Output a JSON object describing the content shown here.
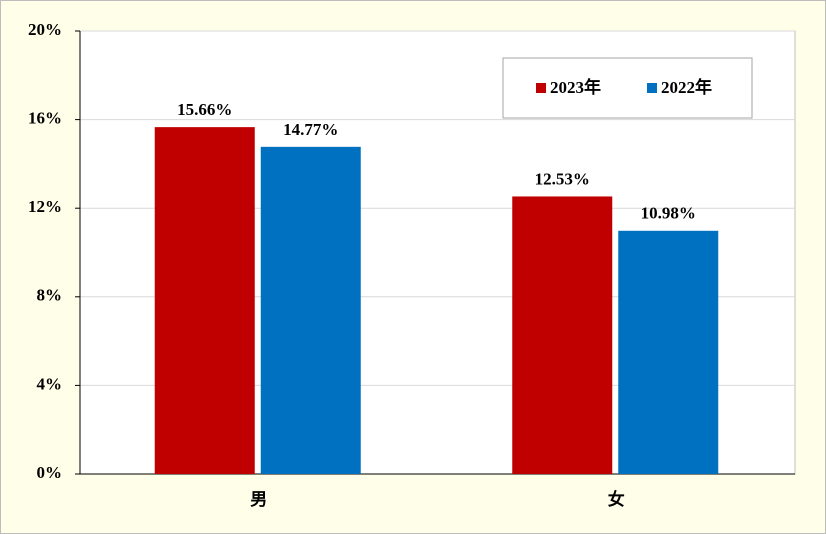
{
  "chart_data": {
    "type": "bar",
    "categories": [
      "男",
      "女"
    ],
    "series": [
      {
        "name": "2023年",
        "color": "#c00000",
        "values": [
          15.66,
          12.53
        ],
        "value_labels": [
          "15.66%",
          "12.53%"
        ]
      },
      {
        "name": "2022年",
        "color": "#0070c0",
        "values": [
          14.77,
          10.98
        ],
        "value_labels": [
          "14.77%",
          "10.98%"
        ]
      }
    ],
    "ylim": [
      0,
      20
    ],
    "yticks": [
      {
        "value": 0,
        "label": "0%"
      },
      {
        "value": 4,
        "label": "4%"
      },
      {
        "value": 8,
        "label": "8%"
      },
      {
        "value": 12,
        "label": "12%"
      },
      {
        "value": 16,
        "label": "16%"
      },
      {
        "value": 20,
        "label": "20%"
      }
    ],
    "grid": true,
    "legend": "upper right"
  }
}
